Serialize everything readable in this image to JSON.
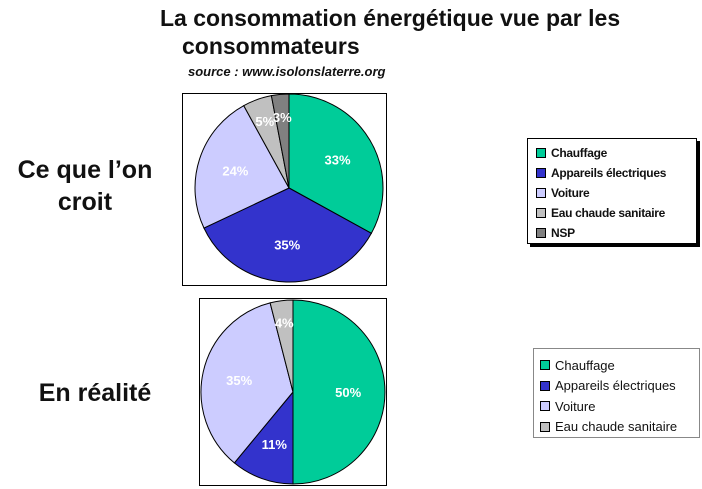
{
  "title_line1": "La consommation énergétique vue par les",
  "title_line2": "consommateurs",
  "source": "source : www.isolonslaterre.org",
  "row_labels": {
    "top": [
      "Ce que l’on",
      "croit"
    ],
    "bottom": "En réalité"
  },
  "chart_data": [
    {
      "type": "pie",
      "title": "Ce que l’on croit",
      "categories": [
        "Chauffage",
        "Appareils électriques",
        "Voiture",
        "Eau chaude sanitaire",
        "NSP"
      ],
      "values": [
        33,
        35,
        24,
        5,
        3
      ],
      "labels": [
        "33%",
        "35%",
        "24%",
        "5%",
        "3%"
      ],
      "colors": [
        "#00cc99",
        "#3333cc",
        "#ccccff",
        "#c0c0c0",
        "#808080"
      ],
      "label_colors": [
        "#ffffff",
        "#ffffff",
        "#ffffff",
        "#ffffff",
        "#ffffff"
      ],
      "legend": "right"
    },
    {
      "type": "pie",
      "title": "En réalité",
      "categories": [
        "Chauffage",
        "Appareils électriques",
        "Voiture",
        "Eau chaude sanitaire"
      ],
      "values": [
        50,
        11,
        35,
        4
      ],
      "labels": [
        "50%",
        "11%",
        "35%",
        "4%"
      ],
      "colors": [
        "#00cc99",
        "#3333cc",
        "#ccccff",
        "#c0c0c0"
      ],
      "label_colors": [
        "#ffffff",
        "#ffffff",
        "#ffffff",
        "#ffffff"
      ],
      "legend": "right"
    }
  ]
}
